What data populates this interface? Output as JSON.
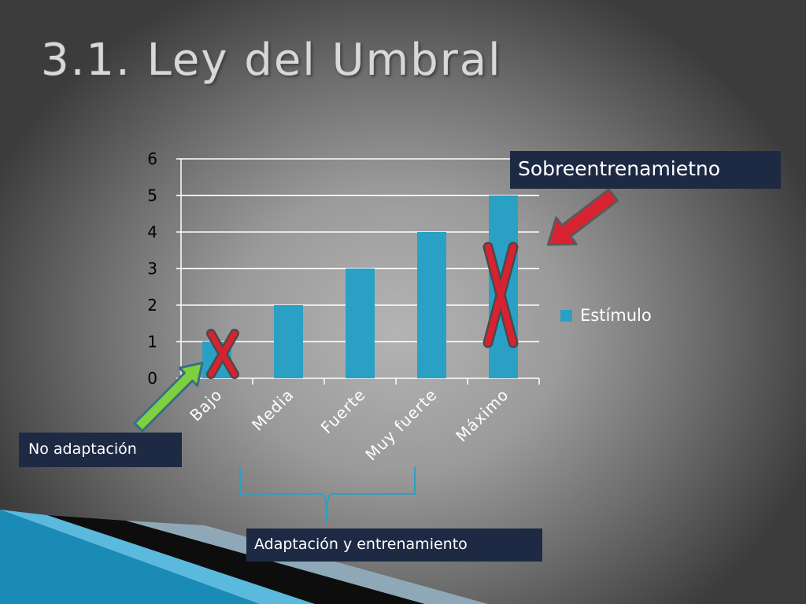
{
  "slide": {
    "title": "3.1. Ley del Umbral"
  },
  "chart_data": {
    "type": "bar",
    "categories": [
      "Bajo",
      "Media",
      "Fuerte",
      "Muy fuerte",
      "Máximo"
    ],
    "series": [
      {
        "name": "Estímulo",
        "values": [
          1,
          2,
          3,
          4,
          5
        ]
      }
    ],
    "ylim": [
      0,
      6
    ],
    "yticks": [
      0,
      1,
      2,
      3,
      4,
      5,
      6
    ],
    "grid": true,
    "legend": "right",
    "colors": {
      "bar": "#2aa0c4",
      "cross": "#d8222f",
      "arrow_red": "#d8222f",
      "arrow_green": "#7ed13e"
    }
  },
  "annotations": {
    "overtraining": "Sobreentrenamietno",
    "no_adaptation": "No adaptación",
    "adaptation": "Adaptación y entrenamiento"
  }
}
